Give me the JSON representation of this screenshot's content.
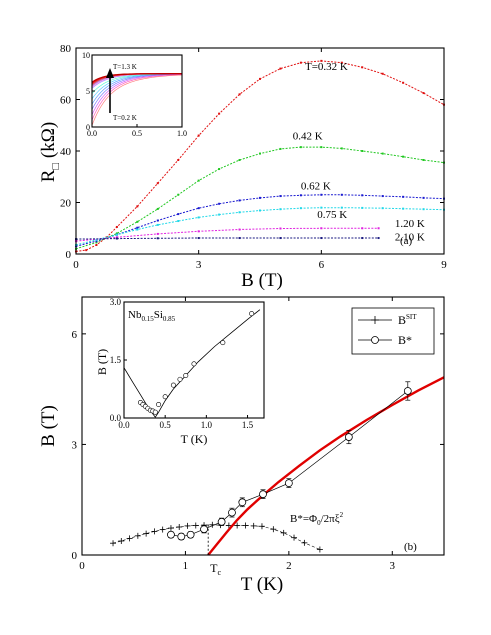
{
  "chart_data": [
    {
      "panel": "a",
      "type": "line",
      "panel_label": "(a)",
      "xlabel": "B (T)",
      "ylabel_main": "R",
      "ylabel_sub": "□",
      "ylabel_unit": "(kΩ)",
      "xlim": [
        0,
        9
      ],
      "ylim": [
        0,
        80
      ],
      "xticks": [
        "0",
        "3",
        "6",
        "9"
      ],
      "yticks": [
        "0",
        "20",
        "40",
        "60",
        "80"
      ],
      "series": [
        {
          "name": "T=0.32 K",
          "color": "#e01010",
          "peak": 75.0,
          "label_at": [
            5.6,
            71.5
          ],
          "x": [
            0,
            0.25,
            0.5,
            0.75,
            1.0,
            1.5,
            2.0,
            2.5,
            3.0,
            3.5,
            4.0,
            4.5,
            5.0,
            5.5,
            6.0,
            6.5,
            7.0,
            7.5,
            8.0,
            8.5,
            9.0
          ],
          "y": [
            1.0,
            1.5,
            3.5,
            6.5,
            10.5,
            18.5,
            27.5,
            36.5,
            46.0,
            54.5,
            62.0,
            68.0,
            72.0,
            74.3,
            75.0,
            74.3,
            72.5,
            70.0,
            66.5,
            62.5,
            58.0
          ]
        },
        {
          "name": "0.42 K",
          "color": "#22c822",
          "peak": 41.5,
          "label_at": [
            5.3,
            44.5
          ],
          "x": [
            0,
            0.5,
            1.0,
            1.5,
            2.0,
            2.5,
            3.0,
            3.5,
            4.0,
            4.5,
            5.0,
            5.5,
            6.0,
            6.5,
            7.0,
            7.5,
            8.0,
            8.5,
            9.0
          ],
          "y": [
            2.0,
            4.5,
            8.0,
            12.5,
            17.5,
            23.0,
            28.5,
            33.0,
            36.5,
            39.0,
            40.8,
            41.5,
            41.5,
            41.0,
            40.0,
            39.0,
            37.8,
            36.5,
            35.5
          ]
        },
        {
          "name": "0.62 K",
          "color": "#1a1ad0",
          "peak": 23.0,
          "label_at": [
            5.5,
            25.0
          ],
          "x": [
            0,
            0.5,
            1.0,
            1.5,
            2.0,
            2.5,
            3.0,
            3.5,
            4.0,
            4.5,
            5.0,
            5.5,
            6.0,
            6.5,
            7.0,
            7.5,
            8.0,
            8.5,
            9.0
          ],
          "y": [
            3.0,
            5.0,
            7.5,
            10.2,
            13.0,
            15.5,
            17.8,
            19.5,
            20.8,
            21.8,
            22.5,
            22.8,
            23.0,
            23.0,
            22.8,
            22.5,
            22.2,
            21.8,
            21.5
          ]
        },
        {
          "name": "0.75 K",
          "color": "#20d8e8",
          "peak": 18.0,
          "label_at": [
            5.9,
            14.0
          ],
          "x": [
            0,
            0.5,
            1.0,
            1.5,
            2.0,
            2.5,
            3.0,
            3.5,
            4.0,
            4.5,
            5.0,
            5.5,
            6.0,
            6.5,
            7.0,
            7.5,
            8.0,
            8.5,
            9.0
          ],
          "y": [
            3.5,
            5.5,
            7.5,
            9.5,
            11.3,
            12.8,
            14.2,
            15.3,
            16.2,
            16.9,
            17.4,
            17.8,
            18.0,
            18.0,
            17.9,
            17.8,
            17.6,
            17.4,
            17.2
          ]
        },
        {
          "name": "1.20 K",
          "color": "#e020e0",
          "peak": 10.0,
          "label_at": [
            7.8,
            10.5
          ],
          "x": [
            0,
            1.0,
            2.0,
            3.0,
            4.0,
            5.0,
            6.0,
            7.0,
            7.4
          ],
          "y": [
            5.0,
            6.5,
            7.8,
            8.8,
            9.5,
            9.9,
            10.0,
            10.0,
            10.0
          ]
        },
        {
          "name": "2.10 K",
          "color": "#1a1a80",
          "peak": 6.2,
          "label_at": [
            7.8,
            5.2
          ],
          "x": [
            0,
            1.0,
            2.0,
            3.0,
            4.0,
            5.0,
            6.0,
            7.0,
            7.4
          ],
          "y": [
            5.8,
            6.0,
            6.1,
            6.2,
            6.2,
            6.2,
            6.2,
            6.2,
            6.2
          ]
        }
      ],
      "inset": {
        "type": "line",
        "xlim": [
          0,
          1.0
        ],
        "ylim": [
          0,
          10
        ],
        "xticks": [
          "0.0",
          "0.5",
          "1.0"
        ],
        "yticks": [
          "0",
          "5",
          "10"
        ],
        "arrow_top_label": "T=1.3 K",
        "arrow_bottom_label": "T=0.2 K",
        "curve_count": 14
      }
    },
    {
      "panel": "b",
      "type": "scatter",
      "panel_label": "(b)",
      "xlabel": "T (K)",
      "ylabel": "B (T)",
      "xlim": [
        0,
        3.5
      ],
      "ylim": [
        0,
        7
      ],
      "xticks": [
        "0",
        "1",
        "2",
        "3"
      ],
      "yticks": [
        "0",
        "3",
        "6"
      ],
      "tc_label": "T",
      "tc_sub": "c",
      "tc_value": 1.22,
      "formula_label": "B*=Φ",
      "formula_sub": "0",
      "formula_mid": "/2πξ",
      "formula_sup": "2",
      "legend": [
        {
          "name_main": "B",
          "name_sup": "SIT",
          "marker": "plus"
        },
        {
          "name_main": "B*",
          "name_sup": "",
          "marker": "circle"
        }
      ],
      "series": [
        {
          "name": "B^SIT",
          "marker": "plus",
          "color": "#000000",
          "x": [
            0.3,
            0.38,
            0.46,
            0.54,
            0.62,
            0.7,
            0.78,
            0.86,
            0.94,
            1.02,
            1.1,
            1.18,
            1.26,
            1.34,
            1.42,
            1.5,
            1.58,
            1.66,
            1.74,
            1.85,
            1.95,
            2.05,
            2.15,
            2.3
          ],
          "y": [
            0.32,
            0.38,
            0.45,
            0.52,
            0.58,
            0.64,
            0.69,
            0.73,
            0.76,
            0.79,
            0.8,
            0.81,
            0.82,
            0.81,
            0.8,
            0.8,
            0.8,
            0.79,
            0.78,
            0.7,
            0.6,
            0.47,
            0.33,
            0.15
          ]
        },
        {
          "name": "B*",
          "marker": "circle",
          "color": "#000000",
          "x": [
            0.86,
            0.96,
            1.05,
            1.18,
            1.35,
            1.45,
            1.55,
            1.75,
            2.0,
            2.58,
            3.15
          ],
          "y": [
            0.55,
            0.5,
            0.55,
            0.7,
            0.9,
            1.15,
            1.43,
            1.65,
            1.95,
            3.2,
            4.45
          ],
          "err": [
            0.08,
            0.08,
            0.08,
            0.1,
            0.1,
            0.12,
            0.12,
            0.12,
            0.12,
            0.18,
            0.25
          ]
        },
        {
          "name": "fit",
          "marker": "line",
          "color": "#e00000",
          "x": [
            1.22,
            1.3,
            1.4,
            1.5,
            1.6,
            1.75,
            1.9,
            2.1,
            2.3,
            2.5,
            2.75,
            3.0,
            3.25,
            3.5
          ],
          "y": [
            0.0,
            0.28,
            0.62,
            0.95,
            1.24,
            1.62,
            1.98,
            2.42,
            2.84,
            3.22,
            3.66,
            4.07,
            4.46,
            4.82
          ]
        }
      ],
      "inset": {
        "title_main": "Nb",
        "title_sub1": "0.15",
        "title_mid": "Si",
        "title_sub2": "0.85",
        "xlabel": "T (K)",
        "ylabel": "B (T)",
        "xlim": [
          0,
          1.7
        ],
        "ylim": [
          0,
          3.0
        ],
        "xticks": [
          "0.0",
          "0.5",
          "1.0",
          "1.5"
        ],
        "yticks": [
          "0.0",
          "1.5",
          "3.0"
        ],
        "points": {
          "x": [
            0.2,
            0.23,
            0.26,
            0.29,
            0.32,
            0.35,
            0.38,
            0.42,
            0.5,
            0.6,
            0.68,
            0.75,
            0.85,
            1.2,
            1.55
          ],
          "y": [
            0.4,
            0.35,
            0.3,
            0.25,
            0.2,
            0.18,
            0.15,
            0.35,
            0.55,
            0.85,
            1.0,
            1.1,
            1.4,
            1.95,
            2.7
          ]
        },
        "fit": {
          "x": [
            0.0,
            0.1,
            0.2,
            0.3,
            0.38,
            0.42,
            0.5,
            0.6,
            0.75,
            0.9,
            1.1,
            1.3,
            1.5,
            1.65
          ],
          "y": [
            1.3,
            0.95,
            0.6,
            0.25,
            0.02,
            0.15,
            0.45,
            0.75,
            1.1,
            1.45,
            1.85,
            2.2,
            2.55,
            2.8
          ]
        }
      }
    }
  ]
}
